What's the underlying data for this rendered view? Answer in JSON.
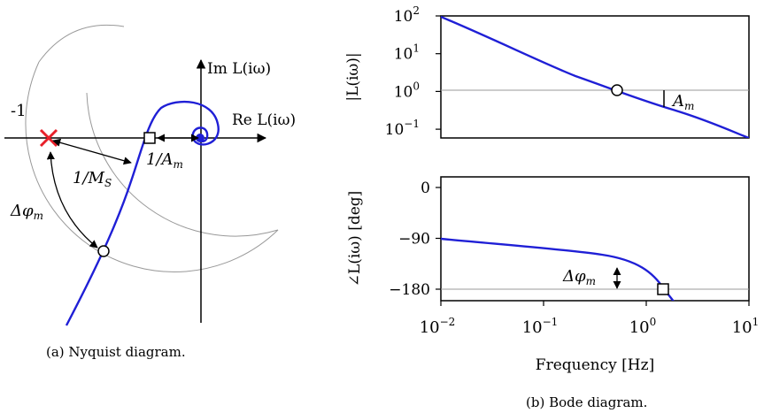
{
  "nyquist": {
    "caption": "(a)  Nyquist diagram.",
    "im_axis_label": "Im L(iω)",
    "re_axis_label": "Re L(iω)",
    "critical_point_label": "-1",
    "ms_label": "1/M",
    "ms_sub": "S",
    "am_label": "1/A",
    "am_sub": "m",
    "phase_margin_label": "Δφ",
    "phase_margin_sub": "m",
    "curve_color": "#1f1fd6",
    "critical_marker_color": "#e8202a"
  },
  "bode": {
    "caption": "(b)  Bode diagram.",
    "xlabel": "Frequency [Hz]",
    "mag_ylabel": "|L(iω)|",
    "phase_ylabel": "∠L(iω)  [deg]",
    "mag_ticks": [
      {
        "base": "10",
        "exp": "2",
        "v": 2
      },
      {
        "base": "10",
        "exp": "1",
        "v": 1
      },
      {
        "base": "10",
        "exp": "0",
        "v": 0
      },
      {
        "base": "10",
        "exp": "−1",
        "v": -1
      }
    ],
    "phase_ticks": [
      {
        "label": "0",
        "v": 0
      },
      {
        "label": "−90",
        "v": -90
      },
      {
        "label": "−180",
        "v": -180
      }
    ],
    "freq_ticks": [
      {
        "base": "10",
        "exp": "−2",
        "v": -2
      },
      {
        "base": "10",
        "exp": "−1",
        "v": -1
      },
      {
        "base": "10",
        "exp": "0",
        "v": 0
      },
      {
        "base": "10",
        "exp": "1",
        "v": 1
      }
    ],
    "am_label": "A",
    "am_sub": "m",
    "phase_margin_label": "Δφ",
    "phase_margin_sub": "m",
    "chart_data": [
      {
        "type": "line",
        "xlabel": "Frequency [Hz]",
        "ylabel": "|L(iω)|",
        "xscale": "log",
        "yscale": "log",
        "xlim": [
          0.01,
          10
        ],
        "ylim": [
          0.05,
          100
        ],
        "series": [
          {
            "x": [
              0.01,
              0.03,
              0.1,
              0.3,
              0.53,
              1,
              3,
              10
            ],
            "y": [
              100,
              28,
              6.5,
              1.8,
              1.0,
              0.5,
              0.17,
              0.05
            ]
          }
        ],
        "reference_line_y": 1
      },
      {
        "type": "line",
        "xlabel": "Frequency [Hz]",
        "ylabel": "∠L(iω) [deg]",
        "xscale": "log",
        "xlim": [
          0.01,
          10
        ],
        "ylim": [
          -190,
          10
        ],
        "series": [
          {
            "x": [
              0.01,
              0.03,
              0.1,
              0.3,
              0.6,
              1,
              1.5,
              2
            ],
            "y": [
              -91,
              -94,
              -102,
              -112,
              -128,
              -150,
              -180,
              -195
            ]
          }
        ],
        "reference_line_y": -180
      }
    ]
  }
}
